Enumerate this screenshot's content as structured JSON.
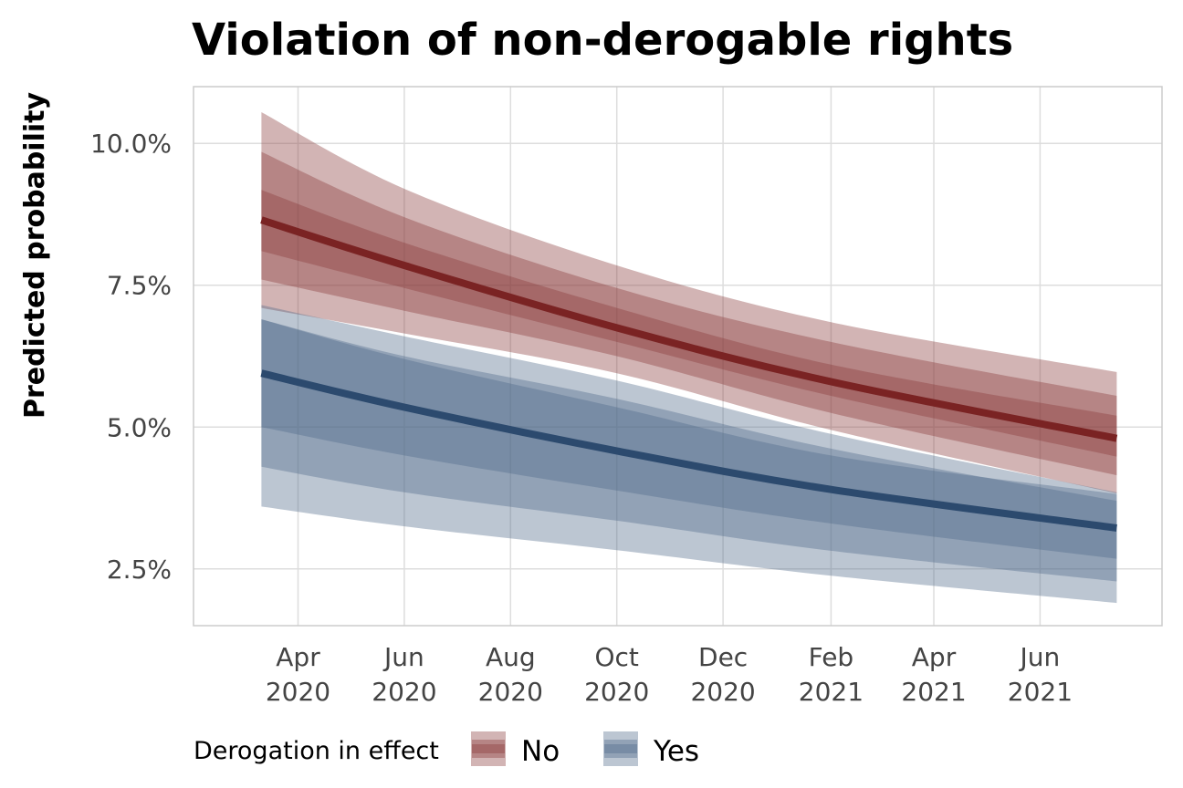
{
  "chart_data": {
    "type": "area",
    "title": "Violation of non-derogable rights",
    "xlabel": "",
    "ylabel": "Predicted probability",
    "ylim": [
      0.015,
      0.11
    ],
    "xlim": [
      "2020-02-01",
      "2021-08-10"
    ],
    "y_ticks": [
      {
        "value": 0.025,
        "label": "2.5%"
      },
      {
        "value": 0.05,
        "label": "5.0%"
      },
      {
        "value": 0.075,
        "label": "7.5%"
      },
      {
        "value": 0.1,
        "label": "10.0%"
      }
    ],
    "x_ticks": [
      {
        "date": "2020-04-01",
        "label": [
          "Apr",
          "2020"
        ]
      },
      {
        "date": "2020-06-01",
        "label": [
          "Jun",
          "2020"
        ]
      },
      {
        "date": "2020-08-01",
        "label": [
          "Aug",
          "2020"
        ]
      },
      {
        "date": "2020-10-01",
        "label": [
          "Oct",
          "2020"
        ]
      },
      {
        "date": "2020-12-01",
        "label": [
          "Dec",
          "2020"
        ]
      },
      {
        "date": "2021-02-01",
        "label": [
          "Feb",
          "2021"
        ]
      },
      {
        "date": "2021-04-01",
        "label": [
          "Apr",
          "2021"
        ]
      },
      {
        "date": "2021-06-01",
        "label": [
          "Jun",
          "2021"
        ]
      }
    ],
    "grid": true,
    "legend": {
      "title": "Derogation in effect",
      "position": "bottom",
      "entries": [
        "No",
        "Yes"
      ]
    },
    "x": [
      "2020-03-11",
      "2020-06-01",
      "2020-10-01",
      "2021-02-01",
      "2021-07-15"
    ],
    "series": [
      {
        "name": "No",
        "color": "#7a2323",
        "band_color": "#8a3a3a",
        "estimate": [
          0.0865,
          0.0785,
          0.0675,
          0.058,
          0.048
        ],
        "intervals": [
          {
            "level": 0.95,
            "lower": [
              0.071,
              0.0665,
              0.0595,
              0.0495,
              0.0383
            ],
            "upper": [
              0.1055,
              0.092,
              0.0785,
              0.0685,
              0.0597
            ]
          },
          {
            "level": 0.8,
            "lower": [
              0.076,
              0.0705,
              0.0625,
              0.0525,
              0.0415
            ],
            "upper": [
              0.0985,
              0.087,
              0.0745,
              0.065,
              0.0555
            ]
          },
          {
            "level": 0.5,
            "lower": [
              0.081,
              0.0745,
              0.065,
              0.0555,
              0.0448
            ],
            "upper": [
              0.0918,
              0.0825,
              0.071,
              0.061,
              0.052
            ]
          }
        ]
      },
      {
        "name": "Yes",
        "color": "#2c4a6e",
        "band_color": "#4f6a8a",
        "estimate": [
          0.0595,
          0.0535,
          0.0458,
          0.039,
          0.0322
        ],
        "intervals": [
          {
            "level": 0.95,
            "lower": [
              0.036,
              0.0325,
              0.0283,
              0.0238,
              0.019
            ],
            "upper": [
              0.0715,
              0.066,
              0.0582,
              0.0488,
              0.0385
            ]
          },
          {
            "level": 0.8,
            "lower": [
              0.043,
              0.0385,
              0.0335,
              0.0282,
              0.0228
            ],
            "upper": [
              0.069,
              0.0625,
              0.055,
              0.0462,
              0.037
            ]
          },
          {
            "level": 0.5,
            "lower": [
              0.05,
              0.045,
              0.0388,
              0.033,
              0.0268
            ],
            "upper": [
              0.069,
              0.062,
              0.0535,
              0.045,
              0.0382
            ]
          }
        ]
      }
    ]
  }
}
